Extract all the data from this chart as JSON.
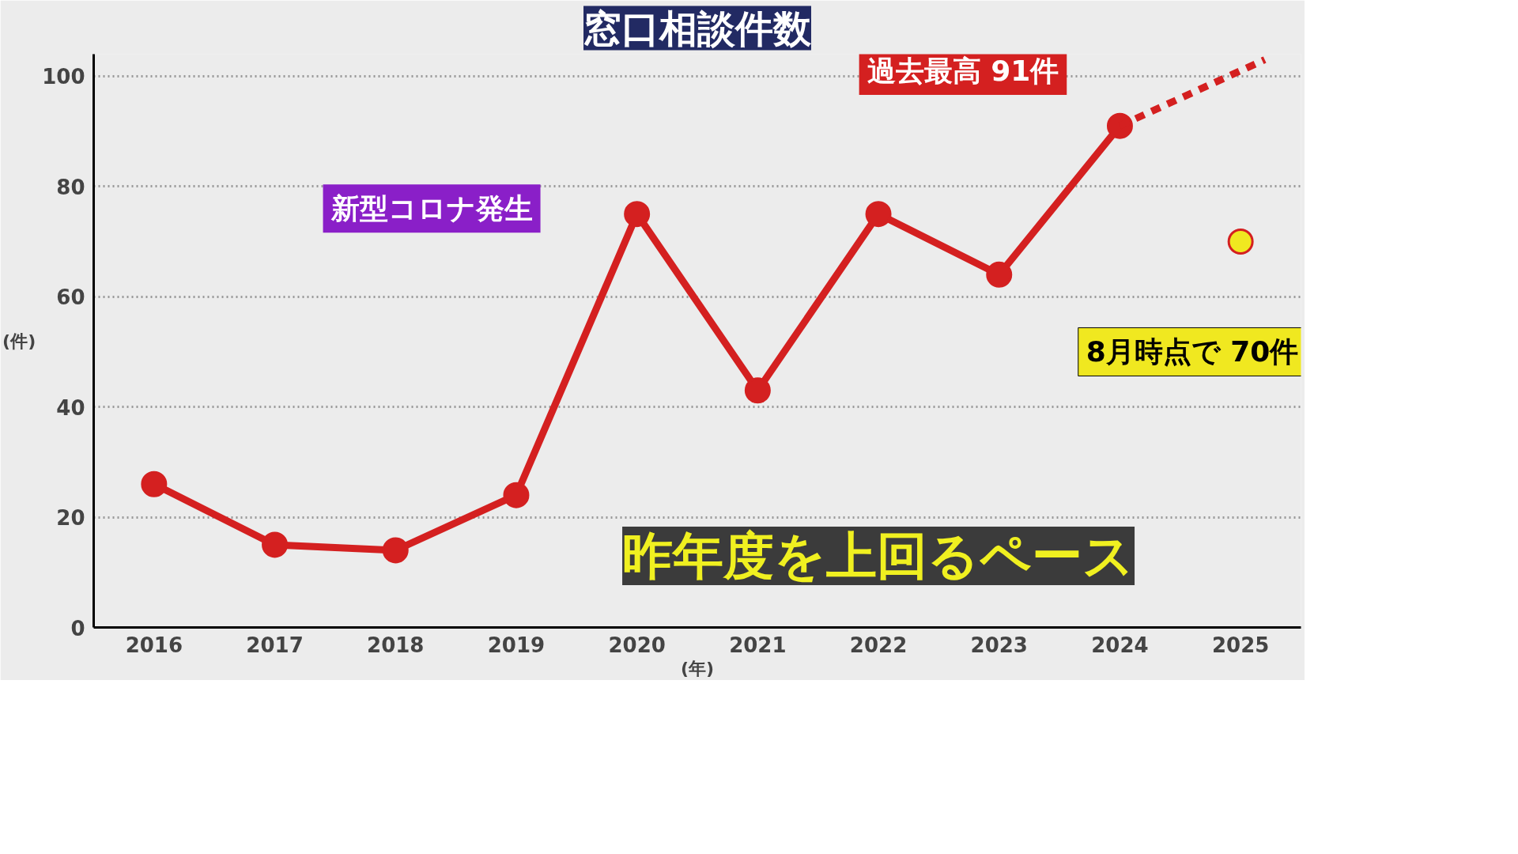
{
  "chart_data": {
    "type": "line",
    "title": "窓口相談件数",
    "ylabel": "(件)",
    "xlabel": "(年)",
    "x": [
      2016,
      2017,
      2018,
      2019,
      2020,
      2021,
      2022,
      2023,
      2024
    ],
    "series": [
      {
        "color": "#d42020",
        "values": [
          26,
          15,
          14,
          24,
          75,
          43,
          75,
          64,
          91
        ],
        "marker": "circle",
        "line_style": "solid"
      },
      {
        "type": "line",
        "color": "#d42020",
        "x": [
          2024,
          2025.2
        ],
        "values": [
          91,
          103
        ],
        "marker": "none",
        "line_style": "dotted"
      },
      {
        "type": "scatter",
        "color": "#f0e820",
        "x": [
          2025
        ],
        "values": [
          70
        ],
        "marker": "circle"
      }
    ],
    "xlim": [
      2015.5,
      2025.5
    ],
    "xticks": [
      2016,
      2017,
      2018,
      2019,
      2020,
      2021,
      2022,
      2023,
      2024,
      2025
    ],
    "ylim": [
      0,
      104
    ],
    "yticks": [
      0,
      20,
      40,
      60,
      80,
      100
    ],
    "grid": "y",
    "annotations": [
      "新型コロナ発生",
      "過去最高 91件",
      "8月時点で 70件",
      "昨年度を上回るペース"
    ]
  }
}
